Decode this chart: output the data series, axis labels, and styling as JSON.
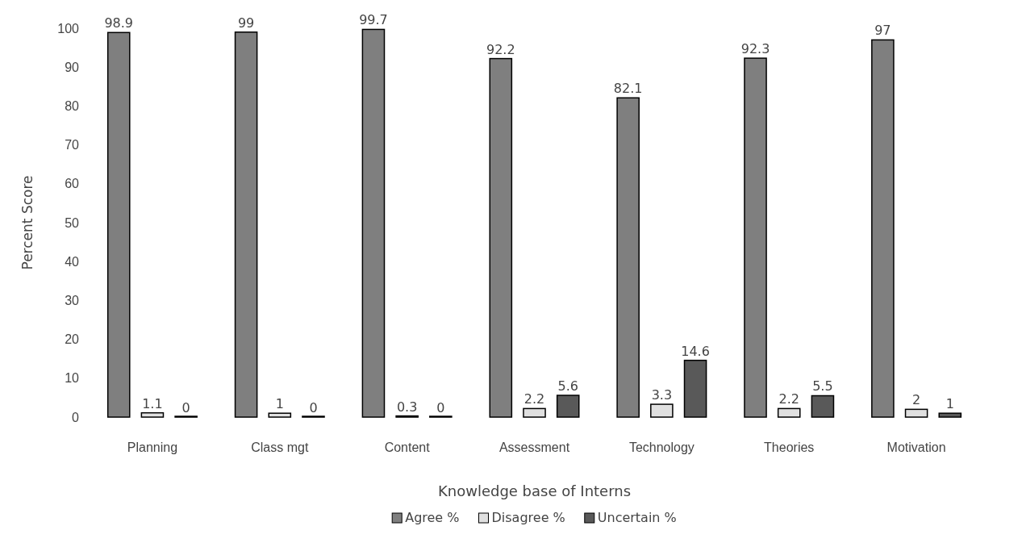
{
  "chart_data": {
    "type": "bar",
    "xlabel": "Knowledge base of Interns",
    "ylabel": "Percent Score",
    "categories": [
      "Planning",
      "Class mgt",
      "Content",
      "Assessment",
      "Technology",
      "Theories",
      "Motivation"
    ],
    "series": [
      {
        "name": "Agree %",
        "color": "#7f7f7f",
        "values": [
          98.9,
          99,
          99.7,
          92.2,
          82.1,
          92.3,
          97
        ]
      },
      {
        "name": "Disagree %",
        "color": "#e0e0e0",
        "values": [
          1.1,
          1,
          0.3,
          2.2,
          3.3,
          2.2,
          2
        ]
      },
      {
        "name": "Uncertain %",
        "color": "#595959",
        "values": [
          0,
          0,
          0,
          5.6,
          14.6,
          5.5,
          1
        ]
      }
    ],
    "ylim": [
      0,
      100
    ],
    "yticks": [
      0,
      10,
      20,
      30,
      40,
      50,
      60,
      70,
      80,
      90,
      100
    ],
    "grid": false,
    "legend": "bottom",
    "data_labels": true
  }
}
